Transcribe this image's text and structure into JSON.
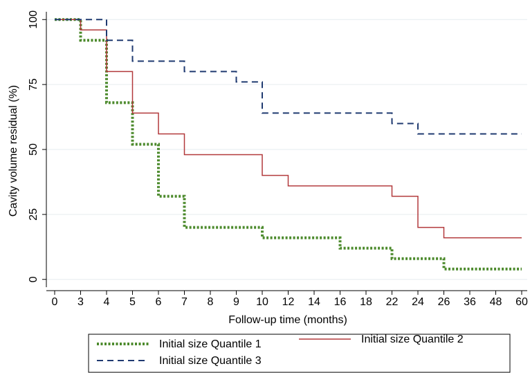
{
  "chart_data": {
    "type": "step",
    "x_label": "Follow-up time (months)",
    "y_label": "Cavity volume residual (%)",
    "categories": [
      0,
      3,
      4,
      5,
      6,
      7,
      8,
      9,
      10,
      12,
      14,
      16,
      18,
      22,
      24,
      26,
      36,
      48,
      60
    ],
    "ylim": [
      -3,
      103
    ],
    "yticks": [
      0,
      25,
      50,
      75,
      100
    ],
    "grid": true,
    "legend": "bottom",
    "series": [
      {
        "name": "Initial size Quantile 1",
        "color": "#4c8a2c",
        "style": "dotted",
        "values": [
          100,
          92,
          68,
          52,
          32,
          20,
          20,
          20,
          16,
          16,
          16,
          12,
          12,
          8,
          8,
          4,
          4,
          4,
          4
        ]
      },
      {
        "name": "Initial size Quantile 2",
        "color": "#b2393b",
        "style": "solid",
        "values": [
          100,
          96,
          80,
          64,
          56,
          48,
          48,
          48,
          40,
          36,
          36,
          36,
          36,
          32,
          20,
          16,
          16,
          16,
          16
        ]
      },
      {
        "name": "Initial size Quantile 3",
        "color": "#1f3a70",
        "style": "dashed",
        "values": [
          100,
          100,
          92,
          84,
          84,
          80,
          80,
          76,
          64,
          64,
          64,
          64,
          64,
          60,
          56,
          56,
          56,
          56,
          56
        ]
      }
    ]
  }
}
